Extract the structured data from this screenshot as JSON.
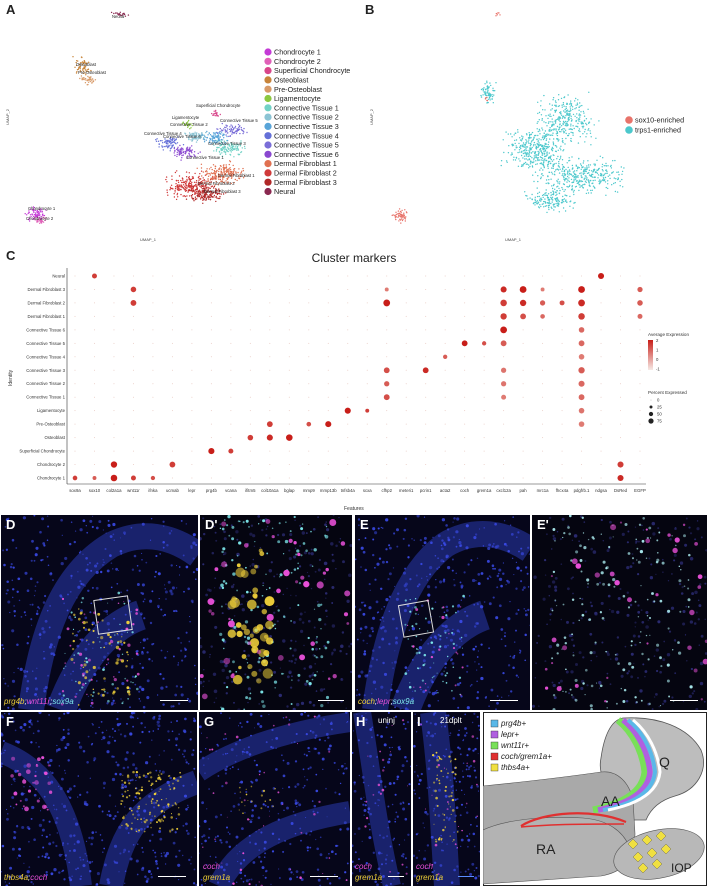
{
  "panels": {
    "A": "A",
    "B": "B",
    "C": "C",
    "D": "D",
    "Dp": "D'",
    "E": "E",
    "Ep": "E'",
    "F": "F",
    "G": "G",
    "H": "H",
    "I": "I",
    "J": "J"
  },
  "umapA": {
    "xlabel": "UMAP_1",
    "ylabel": "UMAP_2",
    "cluster_labels": [
      "Neural",
      "Osteoblast",
      "Pre-Osteoblast",
      "Superficial Chondrocyte",
      "Ligamentocyte",
      "Connective Tissue 2",
      "Connective Tissue 6",
      "Connective Tissue 4",
      "Connective Tissue 5",
      "Connective Tissue 3",
      "Connective Tissue 1",
      "Dermal Fibroblast 1",
      "Dermal Fibroblast 2",
      "Dermal Fibroblast 3",
      "Chondrocyte 1",
      "Chondrocyte 2"
    ],
    "legend": [
      {
        "label": "Chondrocyte 1",
        "color": "#c43ad6"
      },
      {
        "label": "Chondrocyte 2",
        "color": "#e060b8"
      },
      {
        "label": "Superficial Chondrocyte",
        "color": "#d8458a"
      },
      {
        "label": "Osteoblast",
        "color": "#c8843a"
      },
      {
        "label": "Pre-Osteoblast",
        "color": "#d89a68"
      },
      {
        "label": "Ligamentocyte",
        "color": "#8cc840"
      },
      {
        "label": "Connective Tissue 1",
        "color": "#72d2c6"
      },
      {
        "label": "Connective Tissue 2",
        "color": "#8cc4d4"
      },
      {
        "label": "Connective Tissue 3",
        "color": "#58a4d8"
      },
      {
        "label": "Connective Tissue 4",
        "color": "#6470d8"
      },
      {
        "label": "Connective Tissue 5",
        "color": "#7a6ed8"
      },
      {
        "label": "Connective Tissue 6",
        "color": "#8a48d0"
      },
      {
        "label": "Dermal Fibroblast 1",
        "color": "#e07050"
      },
      {
        "label": "Dermal Fibroblast 2",
        "color": "#d03a3a"
      },
      {
        "label": "Dermal Fibroblast 3",
        "color": "#b02828"
      },
      {
        "label": "Neural",
        "color": "#8a2850"
      }
    ]
  },
  "umapB": {
    "xlabel": "UMAP_1",
    "ylabel": "UMAP_2",
    "legend": [
      {
        "label": "sox10-enriched",
        "color": "#e8736a"
      },
      {
        "label": "trps1-enriched",
        "color": "#4cc8cc"
      }
    ]
  },
  "chart_data": {
    "type": "scatter",
    "title": "Cluster markers",
    "xlabel": "Features",
    "ylabel": "Identity",
    "features": [
      "sox9a",
      "sox10",
      "col2a1a",
      "wnt11r",
      "ifnka",
      "ucmab",
      "lepr",
      "prg4b",
      "vcana",
      "ifitm5",
      "col10a1a",
      "bglap",
      "mmp9",
      "mmp13b",
      "tnfsb4a",
      "scxa",
      "cfhp2",
      "meteri1",
      "pcrin1",
      "acta2",
      "coch",
      "grem1a",
      "cxcl12a",
      "pah",
      "mrc1a",
      "fhcx4a",
      "pdgfrb.1",
      "ndgsa",
      "DsRed",
      "EGFP"
    ],
    "identities": [
      "Neural",
      "Dermal Fibroblast 3",
      "Dermal Fibroblast 2",
      "Dermal Fibroblast 1",
      "Connective Tissue 6",
      "Connective Tissue 5",
      "Connective Tissue 4",
      "Connective Tissue 3",
      "Connective Tissue 2",
      "Connective Tissue 1",
      "Ligamentocyte",
      "Pre-Osteoblast",
      "Osteoblast",
      "Superficial Chondrocyte",
      "Chondrocyte 2",
      "Chondrocyte 1"
    ],
    "dots": [
      {
        "feature": "sox10",
        "identity": "Neural",
        "pct": 40,
        "expr": 1.5
      },
      {
        "feature": "ndgsa",
        "identity": "Neural",
        "pct": 60,
        "expr": 2
      },
      {
        "feature": "wnt11r",
        "identity": "Dermal Fibroblast 3",
        "pct": 50,
        "expr": 1.5
      },
      {
        "feature": "cfhp2",
        "identity": "Dermal Fibroblast 3",
        "pct": 25,
        "expr": 0.5
      },
      {
        "feature": "cxcl12a",
        "identity": "Dermal Fibroblast 3",
        "pct": 60,
        "expr": 1.8
      },
      {
        "feature": "pah",
        "identity": "Dermal Fibroblast 3",
        "pct": 75,
        "expr": 2
      },
      {
        "feature": "mrc1a",
        "identity": "Dermal Fibroblast 3",
        "pct": 25,
        "expr": 0.5
      },
      {
        "feature": "pdgfrb.1",
        "identity": "Dermal Fibroblast 3",
        "pct": 75,
        "expr": 2
      },
      {
        "feature": "EGFP",
        "identity": "Dermal Fibroblast 3",
        "pct": 45,
        "expr": 1
      },
      {
        "feature": "wnt11r",
        "identity": "Dermal Fibroblast 2",
        "pct": 55,
        "expr": 1.5
      },
      {
        "feature": "cfhp2",
        "identity": "Dermal Fibroblast 2",
        "pct": 75,
        "expr": 2
      },
      {
        "feature": "cxcl12a",
        "identity": "Dermal Fibroblast 2",
        "pct": 70,
        "expr": 1.5
      },
      {
        "feature": "pah",
        "identity": "Dermal Fibroblast 2",
        "pct": 65,
        "expr": 1.8
      },
      {
        "feature": "mrc1a",
        "identity": "Dermal Fibroblast 2",
        "pct": 45,
        "expr": 1
      },
      {
        "feature": "fhcx4a",
        "identity": "Dermal Fibroblast 2",
        "pct": 40,
        "expr": 1.2
      },
      {
        "feature": "pdgfrb.1",
        "identity": "Dermal Fibroblast 2",
        "pct": 75,
        "expr": 1.8
      },
      {
        "feature": "EGFP",
        "identity": "Dermal Fibroblast 2",
        "pct": 50,
        "expr": 1
      },
      {
        "feature": "cxcl12a",
        "identity": "Dermal Fibroblast 1",
        "pct": 65,
        "expr": 1.5
      },
      {
        "feature": "pah",
        "identity": "Dermal Fibroblast 1",
        "pct": 55,
        "expr": 1.2
      },
      {
        "feature": "mrc1a",
        "identity": "Dermal Fibroblast 1",
        "pct": 35,
        "expr": 0.8
      },
      {
        "feature": "pdgfrb.1",
        "identity": "Dermal Fibroblast 1",
        "pct": 70,
        "expr": 1.5
      },
      {
        "feature": "EGFP",
        "identity": "Dermal Fibroblast 1",
        "pct": 40,
        "expr": 0.8
      },
      {
        "feature": "cxcl12a",
        "identity": "Connective Tissue 6",
        "pct": 75,
        "expr": 2
      },
      {
        "feature": "pdgfrb.1",
        "identity": "Connective Tissue 6",
        "pct": 50,
        "expr": 0.8
      },
      {
        "feature": "coch",
        "identity": "Connective Tissue 5",
        "pct": 55,
        "expr": 2
      },
      {
        "feature": "grem1a",
        "identity": "Connective Tissue 5",
        "pct": 30,
        "expr": 1.2
      },
      {
        "feature": "cxcl12a",
        "identity": "Connective Tissue 5",
        "pct": 55,
        "expr": 1
      },
      {
        "feature": "pdgfrb.1",
        "identity": "Connective Tissue 5",
        "pct": 55,
        "expr": 0.8
      },
      {
        "feature": "acta2",
        "identity": "Connective Tissue 4",
        "pct": 30,
        "expr": 1
      },
      {
        "feature": "pdgfrb.1",
        "identity": "Connective Tissue 4",
        "pct": 50,
        "expr": 0.5
      },
      {
        "feature": "cfhp2",
        "identity": "Connective Tissue 3",
        "pct": 55,
        "expr": 1.2
      },
      {
        "feature": "pcrin1",
        "identity": "Connective Tissue 3",
        "pct": 55,
        "expr": 1.8
      },
      {
        "feature": "cxcl12a",
        "identity": "Connective Tissue 3",
        "pct": 45,
        "expr": 0.6
      },
      {
        "feature": "pdgfrb.1",
        "identity": "Connective Tissue 3",
        "pct": 65,
        "expr": 1
      },
      {
        "feature": "cfhp2",
        "identity": "Connective Tissue 2",
        "pct": 45,
        "expr": 1
      },
      {
        "feature": "cxcl12a",
        "identity": "Connective Tissue 2",
        "pct": 45,
        "expr": 0.6
      },
      {
        "feature": "pdgfrb.1",
        "identity": "Connective Tissue 2",
        "pct": 60,
        "expr": 0.8
      },
      {
        "feature": "cfhp2",
        "identity": "Connective Tissue 1",
        "pct": 55,
        "expr": 1.2
      },
      {
        "feature": "cxcl12a",
        "identity": "Connective Tissue 1",
        "pct": 40,
        "expr": 0.5
      },
      {
        "feature": "pdgfrb.1",
        "identity": "Connective Tissue 1",
        "pct": 55,
        "expr": 0.8
      },
      {
        "feature": "tnfsb4a",
        "identity": "Ligamentocyte",
        "pct": 60,
        "expr": 2
      },
      {
        "feature": "scxa",
        "identity": "Ligamentocyte",
        "pct": 25,
        "expr": 1.5
      },
      {
        "feature": "pdgfrb.1",
        "identity": "Ligamentocyte",
        "pct": 50,
        "expr": 0.6
      },
      {
        "feature": "col10a1a",
        "identity": "Pre-Osteoblast",
        "pct": 55,
        "expr": 1.5
      },
      {
        "feature": "mmp9",
        "identity": "Pre-Osteoblast",
        "pct": 35,
        "expr": 1.2
      },
      {
        "feature": "mmp13b",
        "identity": "Pre-Osteoblast",
        "pct": 60,
        "expr": 2
      },
      {
        "feature": "pdgfrb.1",
        "identity": "Pre-Osteoblast",
        "pct": 50,
        "expr": 0.5
      },
      {
        "feature": "ifitm5",
        "identity": "Osteoblast",
        "pct": 50,
        "expr": 1.5
      },
      {
        "feature": "col10a1a",
        "identity": "Osteoblast",
        "pct": 60,
        "expr": 1.8
      },
      {
        "feature": "bglap",
        "identity": "Osteoblast",
        "pct": 70,
        "expr": 2
      },
      {
        "feature": "prg4b",
        "identity": "Superficial Chondrocyte",
        "pct": 60,
        "expr": 2
      },
      {
        "feature": "vcana",
        "identity": "Superficial Chondrocyte",
        "pct": 40,
        "expr": 1.5
      },
      {
        "feature": "col2a1a",
        "identity": "Chondrocyte 2",
        "pct": 65,
        "expr": 2
      },
      {
        "feature": "ucmab",
        "identity": "Chondrocyte 2",
        "pct": 55,
        "expr": 1.5
      },
      {
        "feature": "DsRed",
        "identity": "Chondrocyte 2",
        "pct": 60,
        "expr": 1.5
      },
      {
        "feature": "sox9a",
        "identity": "Chondrocyte 1",
        "pct": 35,
        "expr": 1.5
      },
      {
        "feature": "sox10",
        "identity": "Chondrocyte 1",
        "pct": 25,
        "expr": 1
      },
      {
        "feature": "col2a1a",
        "identity": "Chondrocyte 1",
        "pct": 70,
        "expr": 2
      },
      {
        "feature": "wnt11r",
        "identity": "Chondrocyte 1",
        "pct": 40,
        "expr": 1.5
      },
      {
        "feature": "ifnka",
        "identity": "Chondrocyte 1",
        "pct": 30,
        "expr": 1.2
      },
      {
        "feature": "DsRed",
        "identity": "Chondrocyte 1",
        "pct": 60,
        "expr": 1.8
      }
    ],
    "legend_expression": {
      "title": "Average Expression",
      "ticks": [
        "2",
        "1",
        "0",
        "-1"
      ]
    },
    "legend_percent": {
      "title": "Percent Expressed",
      "ticks": [
        "0",
        "25",
        "50",
        "75"
      ]
    }
  },
  "micro_captions": {
    "D": [
      {
        "text": "prg4b",
        "color": "#f2d23a"
      },
      {
        "text": ";",
        "color": "#ffffff"
      },
      {
        "text": "wnt11r",
        "color": "#e850d8"
      },
      {
        "text": ";",
        "color": "#ffffff"
      },
      {
        "text": "sox9a",
        "color": "#7ee8ec"
      }
    ],
    "E": [
      {
        "text": "coch",
        "color": "#f2d23a"
      },
      {
        "text": ";",
        "color": "#ffffff"
      },
      {
        "text": "lepr",
        "color": "#e850d8"
      },
      {
        "text": ";",
        "color": "#ffffff"
      },
      {
        "text": "sox9a",
        "color": "#7ee8ec"
      }
    ],
    "F": [
      {
        "text": "thbs4a",
        "color": "#f2d23a"
      },
      {
        "text": ";",
        "color": "#ffffff"
      },
      {
        "text": "coch",
        "color": "#e850d8"
      }
    ],
    "G1": "coch",
    "G2": "grem1a",
    "H1": "coch",
    "H2": "grem1a",
    "I1": "coch",
    "I2": "grem1a",
    "H_tag": "uninj",
    "I_tag": "21dplt"
  },
  "diagram": {
    "legend": [
      {
        "label": "prg4b+",
        "color": "#5ab8e8"
      },
      {
        "label": "lepr+",
        "color": "#b060e0"
      },
      {
        "label": "wnt11r+",
        "color": "#78e058"
      },
      {
        "label": "coch/grem1a+",
        "color": "#e03030"
      },
      {
        "label": "thbs4a+",
        "color": "#f0e040"
      }
    ],
    "labels": {
      "Q": "Q",
      "AA": "AA",
      "RA": "RA",
      "IOP": "IOP"
    }
  }
}
